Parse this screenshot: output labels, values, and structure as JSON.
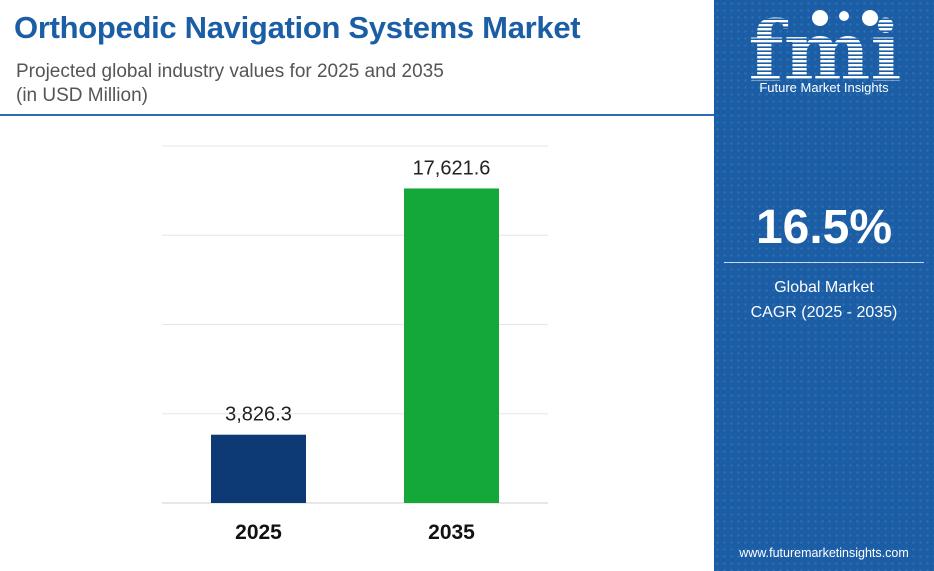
{
  "header": {
    "title": "Orthopedic Navigation Systems Market",
    "subtitle_line1": "Projected global industry values for 2025 and 2035",
    "subtitle_line2": "(in USD Million)"
  },
  "chart_data": {
    "type": "bar",
    "categories": [
      "2025",
      "2035"
    ],
    "values": [
      3826.3,
      17621.6
    ],
    "data_labels": [
      "3,826.3",
      "17,621.6"
    ],
    "colors": [
      "#0d3a75",
      "#14a83a"
    ],
    "ylim": [
      0,
      20000
    ],
    "grid": true,
    "xlabel": "",
    "ylabel": ""
  },
  "sidebar": {
    "logo_text": "fmi",
    "brand_name": "Future Market Insights",
    "cagr_value": "16.5%",
    "cagr_label_line1": "Global Market",
    "cagr_label_line2": "CAGR (2025 - 2035)",
    "website": "www.futuremarketinsights.com",
    "background_color": "#1b5ea6"
  }
}
